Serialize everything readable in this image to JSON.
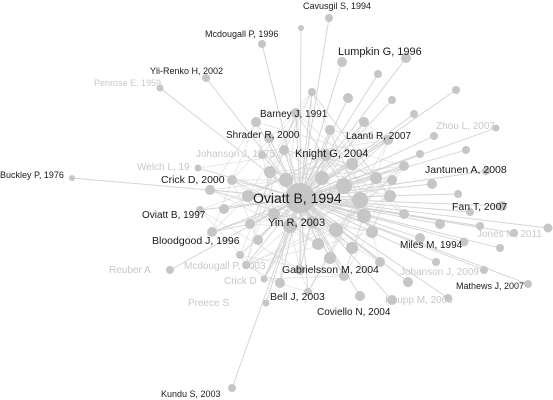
{
  "graph": {
    "hub": "Oviatt B, 1994",
    "labeled_nodes": [
      {
        "id": "cavusgil",
        "label": "Cavusgil S, 1994",
        "faded": false
      },
      {
        "id": "mcdougall1996",
        "label": "Mcdougall P, 1996",
        "faded": false
      },
      {
        "id": "lumpkin",
        "label": "Lumpkin G, 1996",
        "faded": false
      },
      {
        "id": "ylirenko",
        "label": "Yli-Renko H, 2002",
        "faded": false
      },
      {
        "id": "penrose",
        "label": "Penrose E, 1959",
        "faded": true
      },
      {
        "id": "barney",
        "label": "Barney J, 1991",
        "faded": false
      },
      {
        "id": "zhou",
        "label": "Zhou L, 2007",
        "faded": true
      },
      {
        "id": "shrader",
        "label": "Shrader R, 2000",
        "faded": false
      },
      {
        "id": "laanti",
        "label": "Laanti R, 2007",
        "faded": false
      },
      {
        "id": "johanson1975",
        "label": "Johanson J, 1975",
        "faded": true
      },
      {
        "id": "knight",
        "label": "Knight G, 2004",
        "faded": false
      },
      {
        "id": "welch",
        "label": "Welch L, 19",
        "faded": true
      },
      {
        "id": "jantunen",
        "label": "Jantunen A, 2008",
        "faded": false
      },
      {
        "id": "buckley",
        "label": "Buckley P, 1976",
        "faded": false
      },
      {
        "id": "crick2000",
        "label": "Crick D, 2000",
        "faded": false
      },
      {
        "id": "oviatt1994",
        "label": "Oviatt B, 1994",
        "faded": false
      },
      {
        "id": "oviatt1997",
        "label": "Oviatt B, 1997",
        "faded": false
      },
      {
        "id": "fan",
        "label": "Fan T, 2007",
        "faded": false
      },
      {
        "id": "yin",
        "label": "Yin R, 2003",
        "faded": false
      },
      {
        "id": "jones",
        "label": "Jones M, 2011",
        "faded": true
      },
      {
        "id": "bloodgood",
        "label": "Bloodgood J, 1996",
        "faded": false
      },
      {
        "id": "miles",
        "label": "Miles M, 1994",
        "faded": false
      },
      {
        "id": "reuber",
        "label": "Reuber A",
        "faded": true
      },
      {
        "id": "mcdougall2003",
        "label": "Mcdougall P, 2003",
        "faded": true
      },
      {
        "id": "gabrielsson",
        "label": "Gabrielsson M, 2004",
        "faded": false
      },
      {
        "id": "johanson2009",
        "label": "Johanson J, 2009",
        "faded": true
      },
      {
        "id": "crick_faded",
        "label": "Crick D",
        "faded": true
      },
      {
        "id": "mathews",
        "label": "Mathews J, 2007",
        "faded": false
      },
      {
        "id": "bell",
        "label": "Bell J, 2003",
        "faded": false
      },
      {
        "id": "knupp",
        "label": "Knupp M, 2009",
        "faded": true
      },
      {
        "id": "preece",
        "label": "Preece S",
        "faded": true
      },
      {
        "id": "coviello",
        "label": "Coviello N, 2004",
        "faded": false
      },
      {
        "id": "kundu",
        "label": "Kundu S, 2003",
        "faded": false
      }
    ]
  }
}
